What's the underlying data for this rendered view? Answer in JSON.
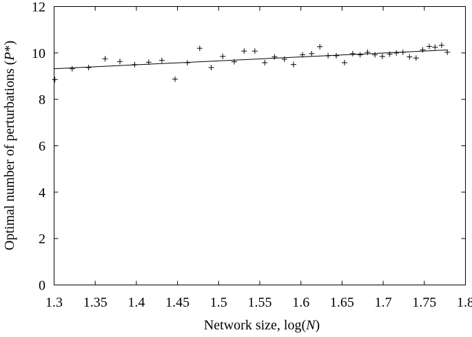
{
  "chart_data": {
    "type": "scatter",
    "xlabel": {
      "prefix": "Network size, log(",
      "var": "N",
      "suffix": ")"
    },
    "ylabel": {
      "prefix": "Optimal number of perturbations (",
      "var": "P",
      "suffix": "*)"
    },
    "xlim": [
      1.3,
      1.8
    ],
    "ylim": [
      0,
      12
    ],
    "xticks": [
      "1.3",
      "1.35",
      "1.4",
      "1.45",
      "1.5",
      "1.55",
      "1.6",
      "1.65",
      "1.7",
      "1.75",
      "1.8"
    ],
    "yticks": [
      "0",
      "2",
      "4",
      "6",
      "8",
      "10",
      "12"
    ],
    "grid": false,
    "marker": "+",
    "series": [
      {
        "x": [
          1.301,
          1.322,
          1.342,
          1.362,
          1.38,
          1.398,
          1.415,
          1.431,
          1.447,
          1.462,
          1.477,
          1.491,
          1.505,
          1.519,
          1.531,
          1.544,
          1.556,
          1.568,
          1.58,
          1.591,
          1.602,
          1.613,
          1.623,
          1.633,
          1.643,
          1.653,
          1.663,
          1.672,
          1.681,
          1.69,
          1.699,
          1.708,
          1.716,
          1.724,
          1.732,
          1.74,
          1.748,
          1.756,
          1.763,
          1.771,
          1.778
        ],
        "y": [
          8.85,
          9.32,
          9.37,
          9.75,
          9.63,
          9.5,
          9.6,
          9.68,
          8.87,
          9.58,
          10.2,
          9.37,
          9.85,
          9.62,
          10.08,
          10.08,
          9.58,
          9.83,
          9.73,
          9.5,
          9.92,
          9.97,
          10.27,
          9.88,
          9.88,
          9.58,
          9.97,
          9.92,
          10.03,
          9.92,
          9.85,
          9.95,
          10.0,
          10.03,
          9.83,
          9.78,
          10.13,
          10.28,
          10.25,
          10.33,
          10.03
        ]
      }
    ],
    "fit_line": {
      "x": [
        1.3,
        1.778
      ],
      "y": [
        9.32,
        10.13
      ]
    }
  }
}
